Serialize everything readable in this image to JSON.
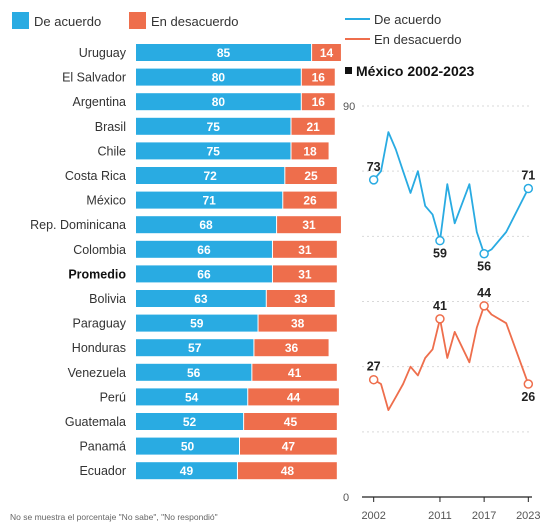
{
  "colors": {
    "agree": "#29ABE2",
    "disagree": "#EE6E4C",
    "text": "#333333"
  },
  "chart_data": [
    {
      "type": "bar",
      "stacked": true,
      "orientation": "horizontal",
      "legend": {
        "agree": "De acuerdo",
        "disagree": "En desacuerdo",
        "position": "top-left"
      },
      "categories": [
        "Uruguay",
        "El Salvador",
        "Argentina",
        "Brasil",
        "Chile",
        "Costa Rica",
        "México",
        "Rep. Dominicana",
        "Colombia",
        "Promedio",
        "Bolivia",
        "Paraguay",
        "Honduras",
        "Venezuela",
        "Perú",
        "Guatemala",
        "Panamá",
        "Ecuador"
      ],
      "highlight": "Promedio",
      "series": [
        {
          "name": "De acuerdo",
          "values": [
            85,
            80,
            80,
            75,
            75,
            72,
            71,
            68,
            66,
            66,
            63,
            59,
            57,
            56,
            54,
            52,
            50,
            49
          ]
        },
        {
          "name": "En desacuerdo",
          "values": [
            14,
            16,
            16,
            21,
            18,
            25,
            26,
            31,
            31,
            31,
            33,
            38,
            36,
            41,
            44,
            45,
            47,
            48
          ]
        }
      ],
      "note": "No se muestra el porcentaje \"No sabe\", \"No respondió\""
    },
    {
      "type": "line",
      "title": "México 2002-2023",
      "legend": {
        "agree": "De acuerdo",
        "disagree": "En desacuerdo",
        "position": "top"
      },
      "ylim": [
        0,
        90
      ],
      "yticks": [
        0,
        90
      ],
      "xlim": [
        2001.5,
        2023.5
      ],
      "xticks": [
        "2002",
        "2011",
        "2017",
        "2023"
      ],
      "grid": true,
      "series": [
        {
          "name": "De acuerdo",
          "x": [
            2002,
            2003,
            2004,
            2005,
            2006,
            2007,
            2008,
            2009,
            2010,
            2011,
            2012,
            2013,
            2015,
            2016,
            2017,
            2018,
            2020,
            2023
          ],
          "y": [
            73,
            75,
            84,
            80,
            75,
            70,
            75,
            67,
            65,
            59,
            72,
            63,
            72,
            61,
            56,
            57,
            61,
            71
          ],
          "labels": [
            {
              "x": 2002,
              "y": 73
            },
            {
              "x": 2011,
              "y": 59
            },
            {
              "x": 2017,
              "y": 56
            },
            {
              "x": 2023,
              "y": 71
            }
          ]
        },
        {
          "name": "En desacuerdo",
          "x": [
            2002,
            2003,
            2004,
            2005,
            2006,
            2007,
            2008,
            2009,
            2010,
            2011,
            2012,
            2013,
            2015,
            2016,
            2017,
            2018,
            2020,
            2023
          ],
          "y": [
            27,
            26,
            20,
            23,
            26,
            30,
            28,
            32,
            34,
            41,
            32,
            38,
            31,
            39,
            44,
            42,
            40,
            26
          ],
          "labels": [
            {
              "x": 2002,
              "y": 27
            },
            {
              "x": 2011,
              "y": 41
            },
            {
              "x": 2017,
              "y": 44
            },
            {
              "x": 2023,
              "y": 26
            }
          ]
        }
      ]
    }
  ]
}
